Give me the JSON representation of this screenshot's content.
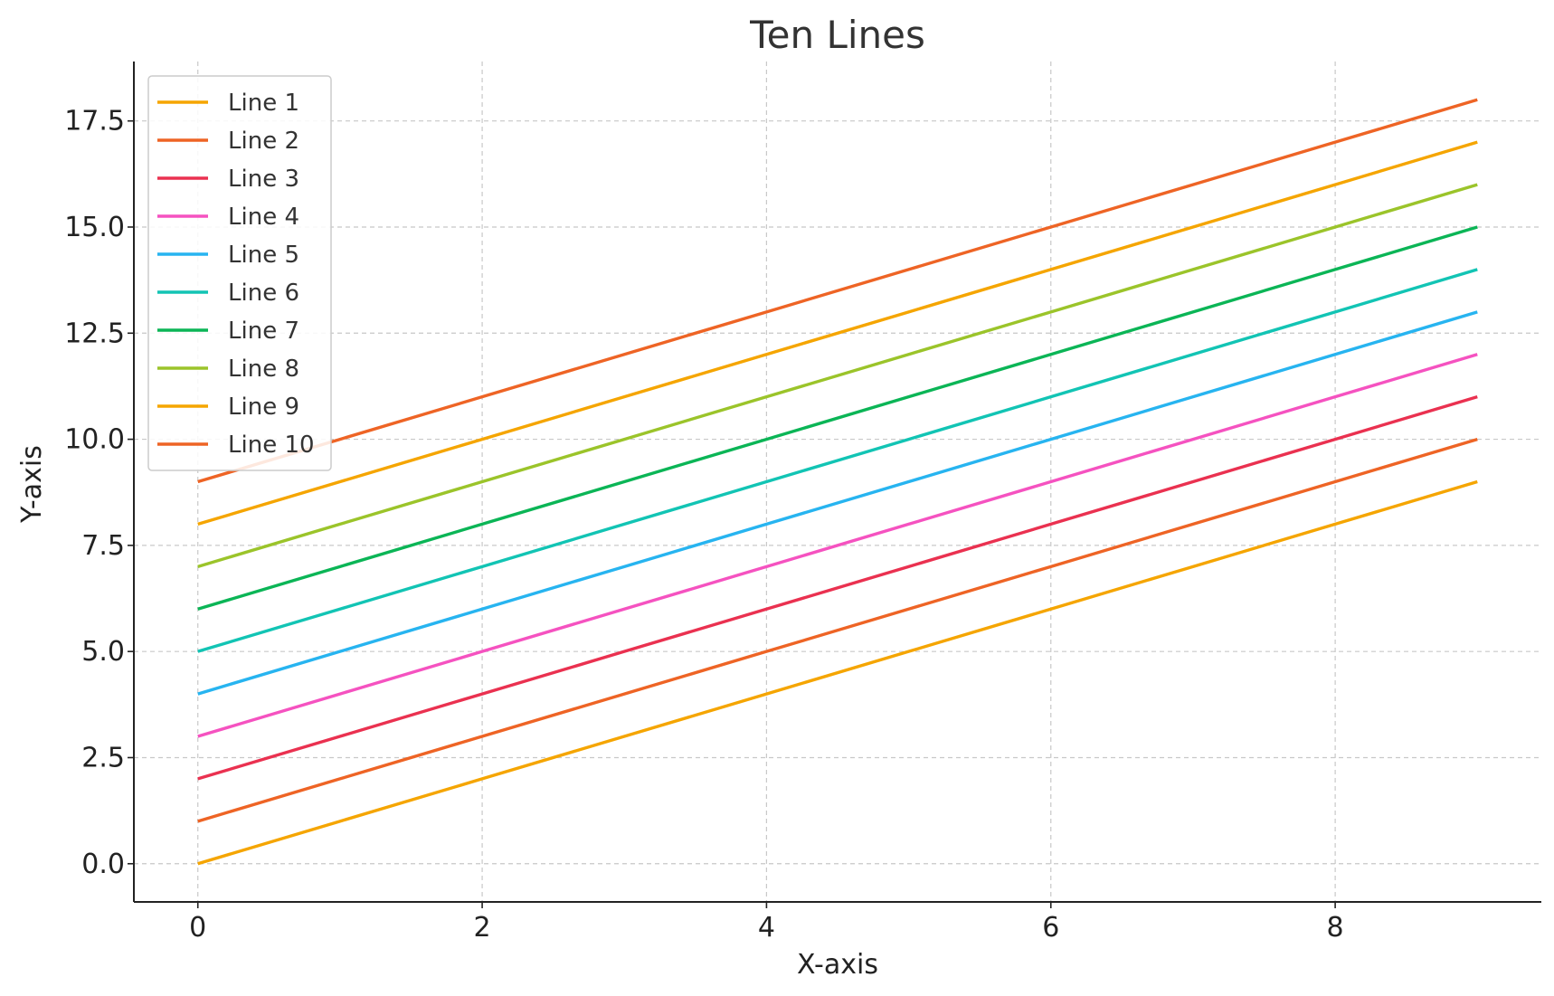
{
  "chart_data": {
    "type": "line",
    "title": "Ten Lines",
    "xlabel": "X-axis",
    "ylabel": "Y-axis",
    "x": [
      0,
      1,
      2,
      3,
      4,
      5,
      6,
      7,
      8,
      9
    ],
    "xlim": [
      -0.45,
      9.45
    ],
    "ylim": [
      -0.9,
      18.9
    ],
    "xticks": [
      0,
      2,
      4,
      6,
      8
    ],
    "xtick_labels": [
      "0",
      "2",
      "4",
      "6",
      "8"
    ],
    "yticks": [
      0,
      2.5,
      5,
      7.5,
      10,
      12.5,
      15,
      17.5
    ],
    "ytick_labels": [
      "0.0",
      "2.5",
      "5.0",
      "7.5",
      "10.0",
      "12.5",
      "15.0",
      "17.5"
    ],
    "grid": true,
    "legend_position": "top-left",
    "series": [
      {
        "name": "Line 1",
        "color": "#f5a500",
        "values": [
          0,
          1,
          2,
          3,
          4,
          5,
          6,
          7,
          8,
          9
        ]
      },
      {
        "name": "Line 2",
        "color": "#ee6425",
        "values": [
          1,
          2,
          3,
          4,
          5,
          6,
          7,
          8,
          9,
          10
        ]
      },
      {
        "name": "Line 3",
        "color": "#ea3150",
        "values": [
          2,
          3,
          4,
          5,
          6,
          7,
          8,
          9,
          10,
          11
        ]
      },
      {
        "name": "Line 4",
        "color": "#f552c0",
        "values": [
          3,
          4,
          5,
          6,
          7,
          8,
          9,
          10,
          11,
          12
        ]
      },
      {
        "name": "Line 5",
        "color": "#27b4f0",
        "values": [
          4,
          5,
          6,
          7,
          8,
          9,
          10,
          11,
          12,
          13
        ]
      },
      {
        "name": "Line 6",
        "color": "#12c4b4",
        "values": [
          5,
          6,
          7,
          8,
          9,
          10,
          11,
          12,
          13,
          14
        ]
      },
      {
        "name": "Line 7",
        "color": "#0bb556",
        "values": [
          6,
          7,
          8,
          9,
          10,
          11,
          12,
          13,
          14,
          15
        ]
      },
      {
        "name": "Line 8",
        "color": "#9bc42a",
        "values": [
          7,
          8,
          9,
          10,
          11,
          12,
          13,
          14,
          15,
          16
        ]
      },
      {
        "name": "Line 9",
        "color": "#f5a500",
        "values": [
          8,
          9,
          10,
          11,
          12,
          13,
          14,
          15,
          16,
          17
        ]
      },
      {
        "name": "Line 10",
        "color": "#ee6425",
        "values": [
          9,
          10,
          11,
          12,
          13,
          14,
          15,
          16,
          17,
          18
        ]
      }
    ]
  }
}
